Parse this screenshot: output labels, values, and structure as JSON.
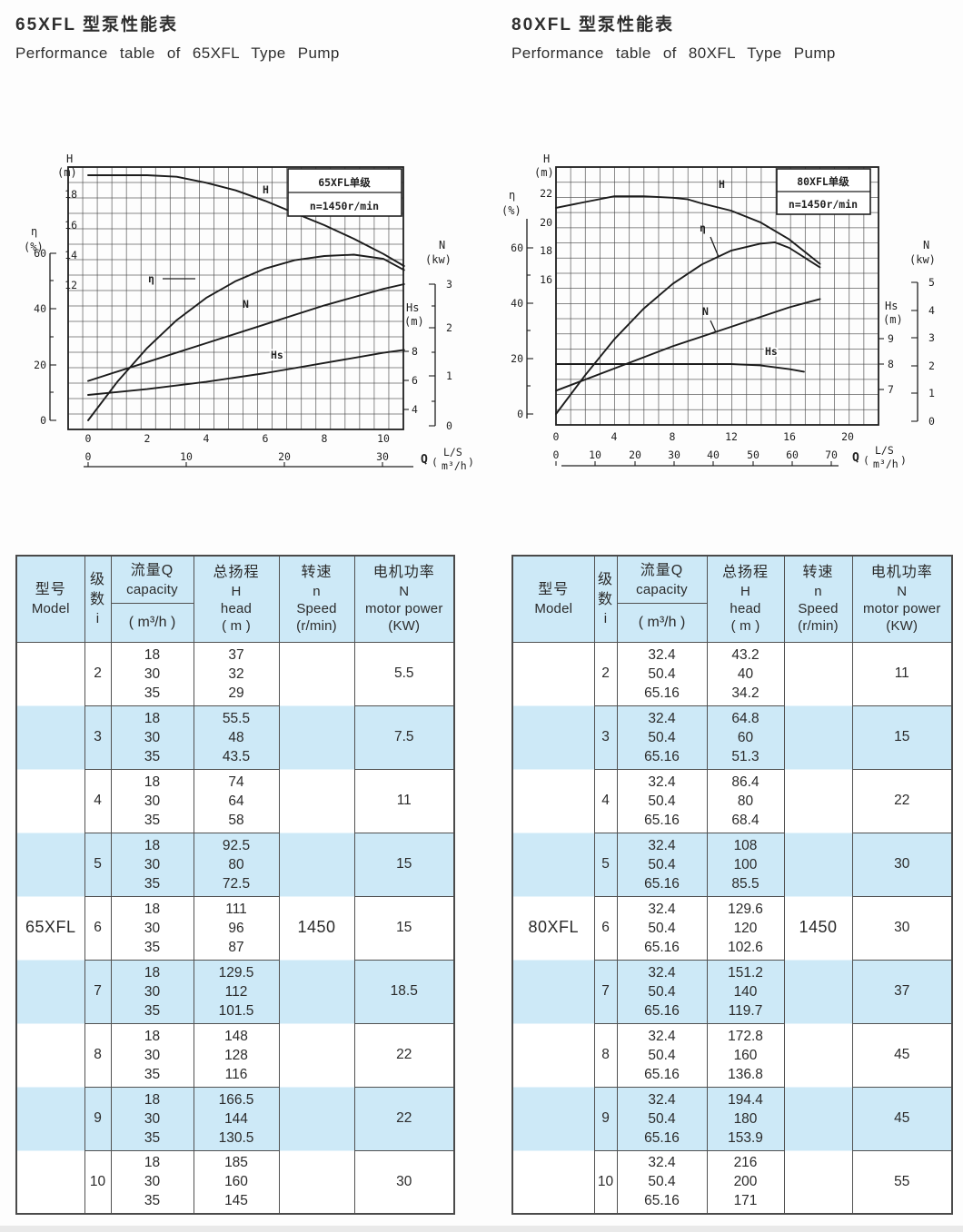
{
  "titles": {
    "left_zh": "65XFL 型泵性能表",
    "left_en": "Performance table of 65XFL Type Pump",
    "right_zh": "80XFL 型泵性能表",
    "right_en": "Performance table of 80XFL Type Pump"
  },
  "table_headers": {
    "model": [
      "型号",
      "Model"
    ],
    "stages": [
      "级",
      "数",
      "i"
    ],
    "capacity": [
      "流量Q",
      "capacity"
    ],
    "capacity_unit": "( m³/h )",
    "head": [
      "总扬程",
      "H",
      "head",
      "( m )"
    ],
    "speed": [
      "转速",
      "n",
      "Speed",
      "(r/min)"
    ],
    "power": [
      "电机功率",
      "N",
      "motor power",
      "(KW)"
    ]
  },
  "tables": {
    "left": {
      "model": "65XFL",
      "speed": "1450",
      "groups": [
        {
          "i": "2",
          "q": [
            "18",
            "30",
            "35"
          ],
          "h": [
            "37",
            "32",
            "29"
          ],
          "power": "5.5"
        },
        {
          "i": "3",
          "q": [
            "18",
            "30",
            "35"
          ],
          "h": [
            "55.5",
            "48",
            "43.5"
          ],
          "power": "7.5"
        },
        {
          "i": "4",
          "q": [
            "18",
            "30",
            "35"
          ],
          "h": [
            "74",
            "64",
            "58"
          ],
          "power": "11"
        },
        {
          "i": "5",
          "q": [
            "18",
            "30",
            "35"
          ],
          "h": [
            "92.5",
            "80",
            "72.5"
          ],
          "power": "15"
        },
        {
          "i": "6",
          "q": [
            "18",
            "30",
            "35"
          ],
          "h": [
            "111",
            "96",
            "87"
          ],
          "power": "15"
        },
        {
          "i": "7",
          "q": [
            "18",
            "30",
            "35"
          ],
          "h": [
            "129.5",
            "112",
            "101.5"
          ],
          "power": "18.5"
        },
        {
          "i": "8",
          "q": [
            "18",
            "30",
            "35"
          ],
          "h": [
            "148",
            "128",
            "116"
          ],
          "power": "22"
        },
        {
          "i": "9",
          "q": [
            "18",
            "30",
            "35"
          ],
          "h": [
            "166.5",
            "144",
            "130.5"
          ],
          "power": "22"
        },
        {
          "i": "10",
          "q": [
            "18",
            "30",
            "35"
          ],
          "h": [
            "185",
            "160",
            "145"
          ],
          "power": "30"
        }
      ]
    },
    "right": {
      "model": "80XFL",
      "speed": "1450",
      "groups": [
        {
          "i": "2",
          "q": [
            "32.4",
            "50.4",
            "65.16"
          ],
          "h": [
            "43.2",
            "40",
            "34.2"
          ],
          "power": "11"
        },
        {
          "i": "3",
          "q": [
            "32.4",
            "50.4",
            "65.16"
          ],
          "h": [
            "64.8",
            "60",
            "51.3"
          ],
          "power": "15"
        },
        {
          "i": "4",
          "q": [
            "32.4",
            "50.4",
            "65.16"
          ],
          "h": [
            "86.4",
            "80",
            "68.4"
          ],
          "power": "22"
        },
        {
          "i": "5",
          "q": [
            "32.4",
            "50.4",
            "65.16"
          ],
          "h": [
            "108",
            "100",
            "85.5"
          ],
          "power": "30"
        },
        {
          "i": "6",
          "q": [
            "32.4",
            "50.4",
            "65.16"
          ],
          "h": [
            "129.6",
            "120",
            "102.6"
          ],
          "power": "30"
        },
        {
          "i": "7",
          "q": [
            "32.4",
            "50.4",
            "65.16"
          ],
          "h": [
            "151.2",
            "140",
            "119.7"
          ],
          "power": "37"
        },
        {
          "i": "8",
          "q": [
            "32.4",
            "50.4",
            "65.16"
          ],
          "h": [
            "172.8",
            "160",
            "136.8"
          ],
          "power": "45"
        },
        {
          "i": "9",
          "q": [
            "32.4",
            "50.4",
            "65.16"
          ],
          "h": [
            "194.4",
            "180",
            "153.9"
          ],
          "power": "45"
        },
        {
          "i": "10",
          "q": [
            "32.4",
            "50.4",
            "65.16"
          ],
          "h": [
            "216",
            "200",
            "171"
          ],
          "power": "55"
        }
      ]
    }
  },
  "chart_data": [
    {
      "type": "line",
      "title": "65XFL单级",
      "subtitle": "n=1450r/min",
      "grid": true,
      "x_axis": {
        "label": "Q",
        "units": [
          "L/S",
          "m³/h"
        ],
        "ticks_ls": [
          "0",
          "2",
          "4",
          "6",
          "8",
          "10"
        ],
        "ticks_m3h": [
          "0",
          "10",
          "20",
          "30"
        ],
        "range_ls": [
          0,
          11
        ]
      },
      "y_axes": {
        "h": {
          "label_lines": [
            "H",
            "(m)"
          ],
          "ticks": [
            "18",
            "16",
            "14",
            "12"
          ]
        },
        "eta": {
          "label_lines": [
            "η",
            "(%)"
          ],
          "ticks": [
            "60",
            "40",
            "20",
            "0"
          ]
        },
        "hs": {
          "label_lines": [
            "Hs",
            "(m)"
          ],
          "ticks": [
            "8",
            "6",
            "4"
          ]
        },
        "n": {
          "label_lines": [
            "N",
            "(kw)"
          ],
          "ticks": [
            "3",
            "2",
            "1",
            "0"
          ]
        }
      },
      "series": [
        {
          "name": "H",
          "unit": "m",
          "points": [
            [
              0,
              19.2
            ],
            [
              2,
              19.2
            ],
            [
              3,
              19.1
            ],
            [
              4,
              18.7
            ],
            [
              5,
              18.2
            ],
            [
              6,
              17.5
            ],
            [
              7,
              16.7
            ],
            [
              8,
              15.9
            ],
            [
              9,
              15
            ],
            [
              10,
              14
            ],
            [
              10.7,
              13.2
            ]
          ]
        },
        {
          "name": "η",
          "unit": "%",
          "points": [
            [
              0,
              0
            ],
            [
              1,
              14
            ],
            [
              2,
              26
            ],
            [
              3,
              36
            ],
            [
              4,
              44
            ],
            [
              5,
              50
            ],
            [
              6,
              54.5
            ],
            [
              7,
              57.5
            ],
            [
              8,
              59
            ],
            [
              9,
              59.5
            ],
            [
              10,
              58
            ],
            [
              10.7,
              54
            ]
          ]
        },
        {
          "name": "N",
          "unit": "kW",
          "points": [
            [
              0,
              0.95
            ],
            [
              2,
              1.35
            ],
            [
              4,
              1.75
            ],
            [
              6,
              2.15
            ],
            [
              8,
              2.55
            ],
            [
              10,
              2.9
            ],
            [
              10.7,
              3.0
            ]
          ]
        },
        {
          "name": "Hs",
          "unit": "m",
          "points": [
            [
              0,
              5
            ],
            [
              2,
              5.4
            ],
            [
              4,
              5.9
            ],
            [
              6,
              6.5
            ],
            [
              8,
              7.2
            ],
            [
              10,
              7.9
            ],
            [
              10.7,
              8.1
            ]
          ]
        }
      ]
    },
    {
      "type": "line",
      "title": "80XFL单级",
      "subtitle": "n=1450r/min",
      "grid": true,
      "x_axis": {
        "label": "Q",
        "units": [
          "L/S",
          "m³/h"
        ],
        "ticks_ls": [
          "0",
          "4",
          "8",
          "12",
          "16",
          "20"
        ],
        "ticks_m3h": [
          "0",
          "10",
          "20",
          "30",
          "40",
          "50",
          "60",
          "70"
        ],
        "range_ls": [
          0,
          22
        ]
      },
      "y_axes": {
        "h": {
          "label_lines": [
            "H",
            "(m)"
          ],
          "ticks": [
            "22",
            "20",
            "18",
            "16"
          ]
        },
        "eta": {
          "label_lines": [
            "η",
            "(%)"
          ],
          "ticks": [
            "60",
            "40",
            "20",
            "0"
          ]
        },
        "hs": {
          "label_lines": [
            "Hs",
            "(m)"
          ],
          "ticks": [
            "9",
            "8",
            "7"
          ]
        },
        "n": {
          "label_lines": [
            "N",
            "(kw)"
          ],
          "ticks": [
            "5",
            "4",
            "3",
            "2",
            "1",
            "0"
          ]
        }
      },
      "series": [
        {
          "name": "H",
          "unit": "m",
          "points": [
            [
              0,
              21
            ],
            [
              2,
              21.4
            ],
            [
              4,
              21.8
            ],
            [
              6,
              21.8
            ],
            [
              8,
              21.7
            ],
            [
              9,
              21.6
            ],
            [
              10,
              21.3
            ],
            [
              12,
              20.8
            ],
            [
              14,
              20
            ],
            [
              16,
              18.8
            ],
            [
              18.1,
              17.1
            ]
          ]
        },
        {
          "name": "η",
          "unit": "%",
          "points": [
            [
              0,
              0
            ],
            [
              2,
              14
            ],
            [
              4,
              27
            ],
            [
              6,
              38
            ],
            [
              8,
              47
            ],
            [
              10,
              54
            ],
            [
              12,
              59
            ],
            [
              14,
              61.5
            ],
            [
              15,
              62
            ],
            [
              16,
              60
            ],
            [
              18.1,
              53
            ]
          ]
        },
        {
          "name": "N",
          "unit": "kW",
          "points": [
            [
              0,
              1.1
            ],
            [
              4,
              1.9
            ],
            [
              8,
              2.7
            ],
            [
              12,
              3.4
            ],
            [
              16,
              4.1
            ],
            [
              18.1,
              4.4
            ]
          ]
        },
        {
          "name": "Hs",
          "unit": "m",
          "points": [
            [
              0,
              8
            ],
            [
              8,
              8
            ],
            [
              12,
              8
            ],
            [
              14,
              7.95
            ],
            [
              16,
              7.8
            ],
            [
              17,
              7.7
            ]
          ]
        }
      ]
    }
  ]
}
